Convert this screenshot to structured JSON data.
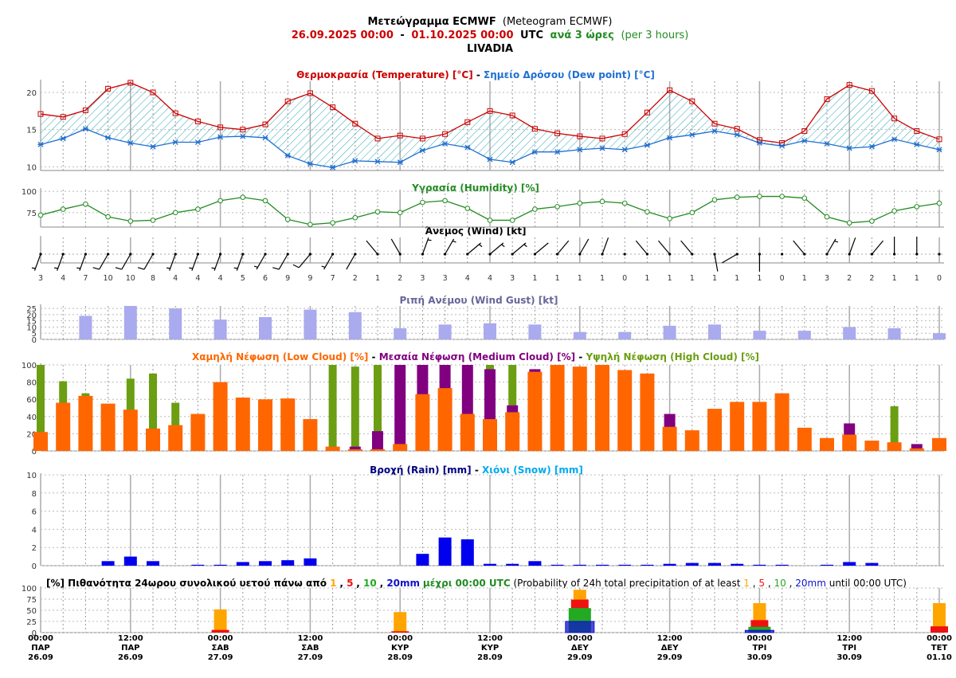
{
  "header": {
    "title_main": "Μετεώγραμμα ECMWF",
    "title_en": "(Meteogram ECMWF)",
    "date_from": "26.09.2025 00:00",
    "date_sep": "-",
    "date_to": "01.10.2025 00:00",
    "utc": "UTC",
    "step": "ανά 3 ώρες",
    "step_en": "(per 3 hours)",
    "location": "LIVADIA"
  },
  "colors": {
    "temperature": "#cc0000",
    "dewpoint": "#1f6fd0",
    "humidity": "#228b22",
    "gust": "#aaaaee",
    "low_cloud": "#ff6600",
    "medium_cloud": "#800080",
    "high_cloud": "#6b9e12",
    "rain": "#0000ee",
    "snow": "#00aaee",
    "prob1": "#ffa500",
    "prob5": "#ee1111",
    "prob10": "#22aa22",
    "prob20": "#1010cc"
  },
  "chart_data": [
    {
      "type": "line",
      "id": "temperature",
      "title_parts": [
        "Θερμοκρασία (Temperature) [°C]",
        " - ",
        "Σημείο Δρόσου (Dew point) [°C]"
      ],
      "yticks": [
        "10",
        "15",
        "20"
      ],
      "ylim": [
        9.5,
        21.5
      ],
      "series": [
        {
          "name": "Θερμοκρασία (Temperature) [°C]",
          "values": [
            17.1,
            16.7,
            17.6,
            20.5,
            21.3,
            20.0,
            17.2,
            16.1,
            15.3,
            15.0,
            15.7,
            18.8,
            19.9,
            18.0,
            15.8,
            13.8,
            14.2,
            13.8,
            14.4,
            16.0,
            17.5,
            16.9,
            15.1,
            14.5,
            14.1,
            13.8,
            14.4,
            17.3,
            20.3,
            18.8,
            15.8,
            15.1,
            13.6,
            13.2,
            14.8,
            19.1,
            21.0,
            20.2,
            16.5,
            14.8,
            13.7
          ]
        },
        {
          "name": "Σημείο Δρόσου (Dew point) [°C]",
          "values": [
            13.0,
            13.8,
            15.1,
            13.9,
            13.2,
            12.7,
            13.3,
            13.3,
            14.0,
            14.1,
            13.9,
            11.5,
            10.4,
            9.9,
            10.8,
            10.7,
            10.6,
            12.2,
            13.1,
            12.6,
            11.0,
            10.6,
            12.0,
            12.0,
            12.3,
            12.5,
            12.3,
            12.9,
            13.9,
            14.3,
            14.8,
            14.3,
            13.2,
            12.8,
            13.5,
            13.1,
            12.5,
            12.7,
            13.7,
            13.0,
            12.3
          ]
        }
      ]
    },
    {
      "type": "line",
      "id": "humidity",
      "title": "Υγρασία (Humidity) [%]",
      "yticks": [
        "75",
        "100"
      ],
      "ylim": [
        58,
        102
      ],
      "series": [
        {
          "name": "Υγρασία (Humidity) [%]",
          "values": [
            72,
            79,
            85,
            70,
            65,
            66,
            75,
            79,
            89,
            93,
            89,
            67,
            61,
            63,
            69,
            76,
            75,
            87,
            89,
            80,
            66,
            66,
            79,
            82,
            86,
            88,
            86,
            76,
            68,
            75,
            90,
            93,
            94,
            94,
            92,
            70,
            63,
            65,
            77,
            82,
            86
          ]
        }
      ]
    },
    {
      "type": "barbs",
      "id": "wind",
      "title": "Άνεμος (Wind) [kt]",
      "speed_labels": [
        "3",
        "4",
        "7",
        "10",
        "10",
        "8",
        "4",
        "4",
        "4",
        "5",
        "6",
        "9",
        "9",
        "7",
        "2",
        "1",
        "2",
        "3",
        "3",
        "4",
        "4",
        "3",
        "1",
        "1",
        "1",
        "1",
        "0",
        "1",
        "1",
        "1",
        "1",
        "1",
        "1",
        "0",
        "1",
        "3",
        "2",
        "2",
        "1",
        "1",
        "0"
      ],
      "directions_deg": [
        200,
        200,
        200,
        210,
        210,
        210,
        200,
        200,
        200,
        200,
        210,
        210,
        220,
        210,
        210,
        320,
        330,
        20,
        30,
        50,
        50,
        50,
        50,
        40,
        30,
        20,
        0,
        320,
        320,
        320,
        170,
        240,
        180,
        0,
        320,
        30,
        20,
        40,
        0,
        0,
        0
      ]
    },
    {
      "type": "bar",
      "id": "gust",
      "title": "Ριπή Ανέμου (Wind Gust) [kt]",
      "yticks": [
        "0",
        "5",
        "10",
        "15",
        "20",
        "25"
      ],
      "ylim": [
        0,
        27
      ],
      "step": 2,
      "values": [
        19,
        27,
        25,
        16,
        18,
        24,
        22,
        9,
        12,
        13,
        12,
        6,
        6,
        11,
        12,
        7,
        7,
        10,
        9,
        5
      ]
    },
    {
      "type": "bar",
      "id": "cloud",
      "title_parts": [
        "Χαμηλή Νέφωση (Low Cloud) [%]",
        " - ",
        "Μεσαία Νέφωση (Medium Cloud) [%]",
        " - ",
        "Υψηλή Νέφωση (High Cloud) [%]"
      ],
      "yticks": [
        "0",
        "20",
        "40",
        "60",
        "80",
        "100"
      ],
      "ylim": [
        0,
        100
      ],
      "series": [
        {
          "name": "Χαμηλή Νέφωση (Low Cloud) [%]",
          "values": [
            22,
            56,
            64,
            55,
            48,
            26,
            30,
            43,
            80,
            62,
            60,
            61,
            37,
            5,
            2,
            2,
            8,
            66,
            73,
            43,
            37,
            45,
            92,
            100,
            98,
            100,
            94,
            90,
            28,
            24,
            49,
            57,
            57,
            67,
            27,
            15,
            19,
            12,
            10,
            3,
            15
          ]
        },
        {
          "name": "Μεσαία Νέφωση (Medium Cloud) [%]",
          "values": [
            0,
            0,
            0,
            0,
            0,
            0,
            0,
            0,
            0,
            0,
            0,
            0,
            0,
            0,
            5,
            23,
            100,
            100,
            100,
            100,
            95,
            53,
            95,
            0,
            0,
            0,
            0,
            0,
            43,
            0,
            0,
            0,
            0,
            0,
            0,
            0,
            32,
            0,
            0,
            8,
            0
          ]
        },
        {
          "name": "Υψηλή Νέφωση (High Cloud) [%]",
          "values": [
            100,
            81,
            67,
            0,
            84,
            90,
            56,
            0,
            0,
            0,
            0,
            59,
            0,
            100,
            98,
            100,
            0,
            0,
            0,
            0,
            100,
            100,
            0,
            0,
            0,
            0,
            0,
            0,
            0,
            0,
            0,
            0,
            0,
            0,
            0,
            0,
            0,
            0,
            52,
            0,
            0
          ]
        }
      ]
    },
    {
      "type": "bar",
      "id": "precip",
      "title_parts": [
        "Βροχή (Rain) [mm]",
        " - ",
        "Χιόνι (Snow) [mm]"
      ],
      "yticks": [
        "0",
        "2",
        "4",
        "6",
        "8",
        "10"
      ],
      "ylim": [
        0,
        10
      ],
      "series": [
        {
          "name": "Βροχή (Rain) [mm]",
          "values": [
            0,
            0,
            0,
            0.5,
            1.0,
            0.5,
            0,
            0.1,
            0.1,
            0.4,
            0.5,
            0.6,
            0.8,
            0,
            0,
            0,
            0,
            1.3,
            3.1,
            2.9,
            0.2,
            0.2,
            0.5,
            0.1,
            0.1,
            0.1,
            0.1,
            0.1,
            0.2,
            0.3,
            0.3,
            0.2,
            0.1,
            0.1,
            0,
            0.1,
            0.4,
            0.3,
            0,
            0,
            0
          ]
        },
        {
          "name": "Χιόνι (Snow) [mm]",
          "values": [
            0,
            0,
            0,
            0,
            0,
            0,
            0,
            0,
            0,
            0,
            0,
            0,
            0,
            0,
            0,
            0,
            0,
            0,
            0,
            0,
            0,
            0,
            0,
            0,
            0,
            0,
            0,
            0,
            0,
            0,
            0,
            0,
            0,
            0,
            0,
            0,
            0,
            0,
            0,
            0,
            0
          ]
        }
      ]
    },
    {
      "type": "bar",
      "id": "probability",
      "title_parts": [
        "[%] Πιθανότητα 24ωρου συνολικού υετού πάνω από ",
        "1",
        ", ",
        "5",
        ", ",
        "10",
        ", ",
        "20mm",
        " μέχρι 00:00 UTC",
        " (Probability of 24h total precipitation of at least ",
        "1",
        ", ",
        "5",
        ", ",
        "10",
        ", ",
        "20mm",
        " until 00:00 UTC)"
      ],
      "yticks": [
        "0",
        "25",
        "50",
        "75",
        "100"
      ],
      "ylim": [
        0,
        100
      ],
      "categories": [
        "27.09",
        "28.09",
        "29.09",
        "30.09",
        "01.10"
      ],
      "series": [
        {
          "name": "1",
          "values": [
            52,
            46,
            96,
            66,
            66
          ]
        },
        {
          "name": "5",
          "values": [
            6,
            3,
            74,
            28,
            14
          ]
        },
        {
          "name": "10",
          "values": [
            0,
            0,
            55,
            13,
            0
          ]
        },
        {
          "name": "20mm",
          "values": [
            0,
            0,
            25,
            5,
            0
          ]
        }
      ]
    }
  ],
  "xaxis": {
    "times": [
      "00:00",
      "12:00",
      "00:00",
      "12:00",
      "00:00",
      "12:00",
      "00:00",
      "12:00",
      "00:00",
      "12:00",
      "00:00"
    ],
    "days": [
      "ΠΑΡ",
      "ΠΑΡ",
      "ΣΑΒ",
      "ΣΑΒ",
      "ΚΥΡ",
      "ΚΥΡ",
      "ΔΕΥ",
      "ΔΕΥ",
      "ΤΡΙ",
      "ΤΡΙ",
      "ΤΕΤ"
    ],
    "dates": [
      "26.09",
      "26.09",
      "27.09",
      "27.09",
      "28.09",
      "28.09",
      "29.09",
      "29.09",
      "30.09",
      "30.09",
      "01.10"
    ]
  }
}
